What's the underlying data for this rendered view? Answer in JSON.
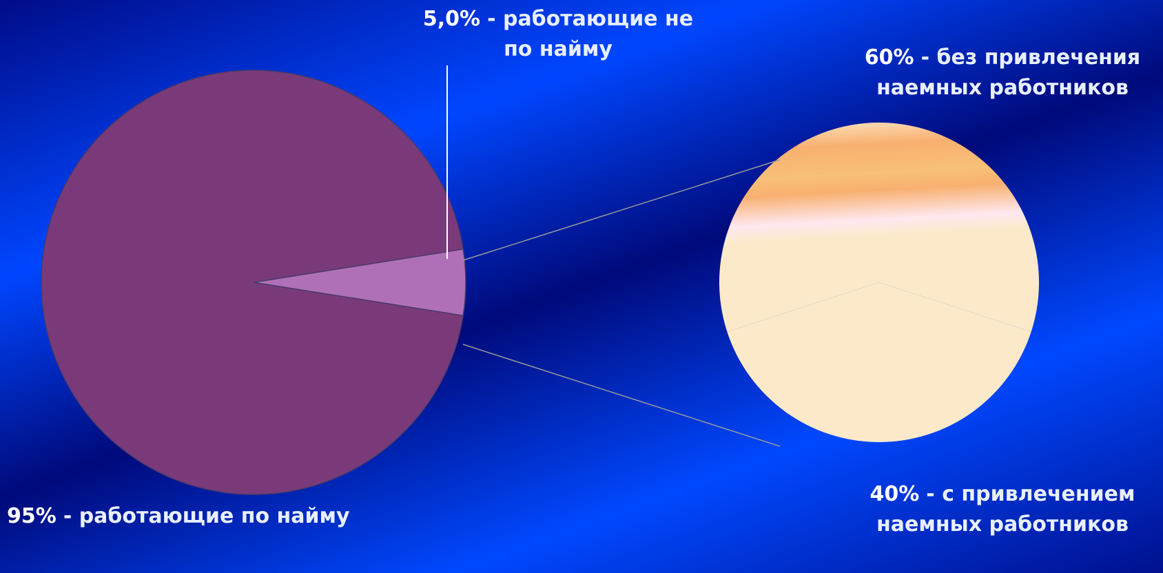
{
  "chart_data": [
    {
      "type": "pie",
      "categories": [
        "- работающие по найму",
        "- работающие не по найму"
      ],
      "values": [
        95,
        5.0
      ],
      "value_labels": [
        "95%",
        "5,0%"
      ],
      "colors": [
        "#7a3a7a",
        "#b070b8"
      ]
    },
    {
      "type": "pie",
      "categories": [
        "- без привлечения наемных работников",
        "- с привлечением наемных работников"
      ],
      "values": [
        60,
        40
      ],
      "value_labels": [
        "60%",
        "40%"
      ],
      "colors": [
        "#f8b070",
        "#fbe9c9"
      ]
    }
  ]
}
